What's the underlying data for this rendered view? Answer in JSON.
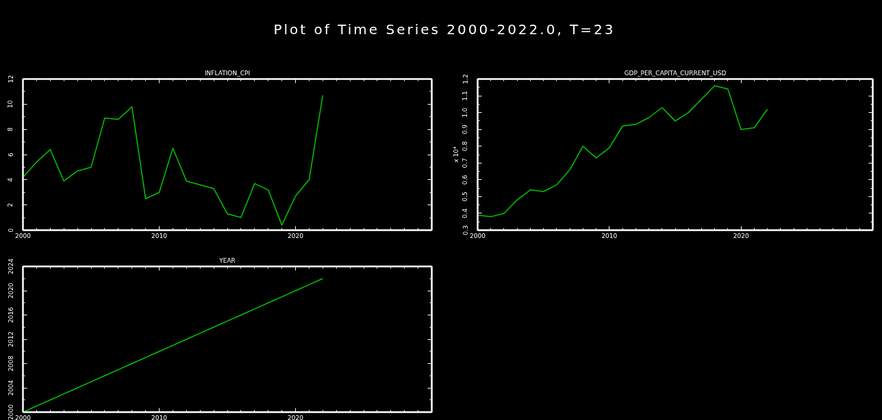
{
  "chart_data": [
    {
      "type": "other",
      "title": "Plot of Time Series 2000-2022.0, T=23"
    },
    {
      "type": "line",
      "title": "INFLATION_CPI",
      "x": [
        2000,
        2001,
        2002,
        2003,
        2004,
        2005,
        2006,
        2007,
        2008,
        2009,
        2010,
        2011,
        2012,
        2013,
        2014,
        2015,
        2016,
        2017,
        2018,
        2019,
        2020,
        2021,
        2022
      ],
      "values": [
        4.2,
        5.4,
        6.4,
        3.9,
        4.7,
        5.0,
        8.9,
        8.8,
        9.8,
        2.5,
        3.0,
        6.5,
        3.9,
        3.6,
        3.3,
        1.3,
        1.0,
        3.7,
        3.2,
        0.4,
        2.7,
        4.0,
        10.7
      ],
      "color": "#00c800",
      "xlim": [
        2000,
        2030
      ],
      "xticks": [
        2000,
        2010,
        2020
      ],
      "ylim": [
        0,
        12
      ],
      "yticks": [
        0,
        2,
        4,
        6,
        8,
        10,
        12
      ],
      "grid": false
    },
    {
      "type": "line",
      "title": "GDP_PER_CAPITA_CURRENT_USD",
      "ylabel": "x 10⁴",
      "x": [
        2000,
        2001,
        2002,
        2003,
        2004,
        2005,
        2006,
        2007,
        2008,
        2009,
        2010,
        2011,
        2012,
        2013,
        2014,
        2015,
        2016,
        2017,
        2018,
        2019,
        2020,
        2021,
        2022
      ],
      "values": [
        0.39,
        0.38,
        0.4,
        0.48,
        0.54,
        0.53,
        0.57,
        0.66,
        0.8,
        0.73,
        0.79,
        0.92,
        0.93,
        0.97,
        1.03,
        0.95,
        1.0,
        1.08,
        1.16,
        1.14,
        0.9,
        0.91,
        1.02
      ],
      "color": "#00c800",
      "xlim": [
        2000,
        2030
      ],
      "xticks": [
        2000,
        2010,
        2020
      ],
      "ylim": [
        0.3,
        1.2
      ],
      "yticks": [
        {
          "value": 0.3,
          "label": "0.3"
        },
        {
          "value": 0.4,
          "label": "0.4"
        },
        {
          "value": 0.5,
          "label": "0.5"
        },
        {
          "value": 0.6,
          "label": "0.6"
        },
        {
          "value": 0.7,
          "label": "0.7"
        },
        {
          "value": 0.8,
          "label": "0.8"
        },
        {
          "value": 0.9,
          "label": "0.9"
        },
        {
          "value": 1.0,
          "label": "1.0"
        },
        {
          "value": 1.1,
          "label": "1.1"
        },
        {
          "value": 1.2,
          "label": "1.2"
        }
      ],
      "grid": false
    },
    {
      "type": "line",
      "title": "YEAR",
      "x": [
        2000,
        2001,
        2002,
        2003,
        2004,
        2005,
        2006,
        2007,
        2008,
        2009,
        2010,
        2011,
        2012,
        2013,
        2014,
        2015,
        2016,
        2017,
        2018,
        2019,
        2020,
        2021,
        2022
      ],
      "values": [
        2000,
        2001,
        2002,
        2003,
        2004,
        2005,
        2006,
        2007,
        2008,
        2009,
        2010,
        2011,
        2012,
        2013,
        2014,
        2015,
        2016,
        2017,
        2018,
        2019,
        2020,
        2021,
        2022
      ],
      "color": "#00c800",
      "xlim": [
        2000,
        2030
      ],
      "xticks": [
        2000,
        2010,
        2020
      ],
      "ylim": [
        2000,
        2024
      ],
      "yticks": [
        2000,
        2004,
        2008,
        2012,
        2016,
        2020,
        2024
      ],
      "grid": false
    }
  ]
}
